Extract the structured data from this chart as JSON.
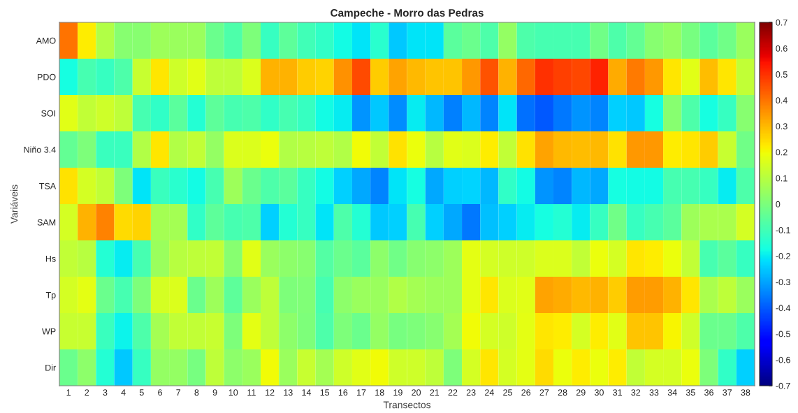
{
  "chart_data": {
    "type": "heatmap",
    "title": "Campeche - Morro das Pedras",
    "xlabel": "Transectos",
    "ylabel": "Variáveis",
    "categories": [
      "1",
      "2",
      "3",
      "4",
      "5",
      "6",
      "7",
      "8",
      "9",
      "10",
      "11",
      "12",
      "13",
      "14",
      "15",
      "16",
      "17",
      "18",
      "19",
      "20",
      "21",
      "22",
      "23",
      "24",
      "25",
      "26",
      "27",
      "28",
      "29",
      "30",
      "31",
      "32",
      "33",
      "34",
      "35",
      "36",
      "37",
      "38"
    ],
    "y_categories": [
      "AMO",
      "PDO",
      "SOI",
      "Niño 3.4",
      "TSA",
      "SAM",
      "Hs",
      "Tp",
      "WP",
      "Dir"
    ],
    "cells": [
      [
        0.4,
        0.22,
        0.09,
        0.02,
        0.02,
        0.06,
        0.05,
        0.05,
        -0.03,
        -0.08,
        0.0,
        -0.12,
        -0.05,
        -0.1,
        -0.13,
        -0.18,
        -0.21,
        -0.14,
        -0.25,
        -0.21,
        -0.21,
        -0.06,
        -0.03,
        -0.08,
        0.04,
        -0.08,
        -0.09,
        -0.09,
        -0.09,
        -0.02,
        -0.08,
        -0.04,
        0.02,
        0.04,
        -0.01,
        -0.06,
        -0.02,
        0.05
      ],
      [
        -0.17,
        -0.09,
        -0.12,
        -0.08,
        0.13,
        0.23,
        0.14,
        0.17,
        0.11,
        0.11,
        0.16,
        0.31,
        0.31,
        0.27,
        0.26,
        0.36,
        0.46,
        0.27,
        0.33,
        0.3,
        0.28,
        0.28,
        0.35,
        0.45,
        0.31,
        0.42,
        0.5,
        0.48,
        0.47,
        0.52,
        0.32,
        0.39,
        0.35,
        0.23,
        0.17,
        0.29,
        0.23,
        0.12
      ],
      [
        0.17,
        0.12,
        0.14,
        0.11,
        -0.09,
        -0.13,
        -0.06,
        -0.15,
        -0.05,
        -0.09,
        -0.08,
        -0.13,
        -0.09,
        -0.12,
        -0.18,
        -0.2,
        -0.32,
        -0.25,
        -0.33,
        -0.2,
        -0.27,
        -0.35,
        -0.27,
        -0.34,
        -0.21,
        -0.37,
        -0.4,
        -0.36,
        -0.32,
        -0.34,
        -0.24,
        -0.25,
        -0.17,
        0.02,
        -0.08,
        -0.17,
        -0.12,
        0.02
      ],
      [
        -0.04,
        0.0,
        -0.11,
        -0.11,
        0.09,
        0.23,
        0.09,
        0.12,
        0.04,
        0.16,
        0.16,
        0.19,
        0.09,
        0.1,
        0.11,
        0.09,
        0.2,
        0.12,
        0.24,
        0.19,
        0.1,
        0.17,
        0.16,
        0.22,
        0.12,
        0.24,
        0.33,
        0.3,
        0.29,
        0.3,
        0.24,
        0.35,
        0.35,
        0.22,
        0.23,
        0.27,
        0.13,
        -0.02
      ],
      [
        0.24,
        0.15,
        0.12,
        0.0,
        -0.21,
        -0.11,
        -0.14,
        -0.18,
        -0.09,
        0.06,
        -0.03,
        -0.08,
        -0.06,
        -0.12,
        -0.18,
        -0.24,
        -0.29,
        -0.34,
        -0.21,
        -0.17,
        -0.29,
        -0.24,
        -0.23,
        -0.27,
        -0.13,
        -0.18,
        -0.32,
        -0.34,
        -0.27,
        -0.29,
        -0.17,
        -0.18,
        -0.18,
        -0.09,
        -0.09,
        -0.12,
        -0.2,
        -0.08
      ],
      [
        0.15,
        0.31,
        0.38,
        0.25,
        0.26,
        0.07,
        0.07,
        -0.13,
        -0.05,
        -0.09,
        -0.08,
        -0.24,
        -0.15,
        -0.12,
        -0.21,
        -0.08,
        -0.15,
        -0.25,
        -0.24,
        -0.09,
        -0.24,
        -0.29,
        -0.36,
        -0.26,
        -0.24,
        -0.2,
        -0.17,
        -0.15,
        -0.2,
        -0.12,
        -0.02,
        -0.12,
        -0.09,
        -0.06,
        0.06,
        0.08,
        0.08,
        0.15
      ],
      [
        0.12,
        0.1,
        -0.15,
        -0.2,
        -0.09,
        0.05,
        0.1,
        0.11,
        0.12,
        0.02,
        0.17,
        0.05,
        0.03,
        0.02,
        -0.07,
        -0.03,
        -0.06,
        0.03,
        -0.02,
        0.02,
        0.03,
        0.06,
        0.18,
        0.15,
        0.14,
        0.14,
        0.16,
        0.16,
        0.12,
        0.19,
        0.15,
        0.23,
        0.22,
        0.19,
        0.12,
        -0.09,
        -0.06,
        -0.12
      ],
      [
        0.15,
        0.18,
        -0.03,
        -0.09,
        0.0,
        0.15,
        0.16,
        -0.03,
        0.06,
        -0.05,
        0.05,
        0.11,
        0.0,
        0.01,
        -0.09,
        0.03,
        0.05,
        0.05,
        0.09,
        0.07,
        0.06,
        0.06,
        0.18,
        0.23,
        0.16,
        0.17,
        0.33,
        0.32,
        0.3,
        0.31,
        0.27,
        0.34,
        0.34,
        0.31,
        0.23,
        0.08,
        0.11,
        0.05
      ],
      [
        0.13,
        0.13,
        -0.11,
        -0.19,
        -0.08,
        0.07,
        0.12,
        0.12,
        0.13,
        0.0,
        0.18,
        0.11,
        0.03,
        0.0,
        -0.08,
        0.0,
        -0.03,
        0.04,
        -0.01,
        0.0,
        0.02,
        0.07,
        0.2,
        0.15,
        0.14,
        0.18,
        0.23,
        0.22,
        0.15,
        0.22,
        0.17,
        0.28,
        0.28,
        0.21,
        0.14,
        -0.03,
        -0.03,
        -0.08
      ],
      [
        -0.03,
        0.03,
        -0.15,
        -0.25,
        -0.12,
        0.04,
        0.04,
        -0.01,
        0.11,
        0.03,
        0.05,
        0.2,
        0.05,
        0.13,
        0.07,
        0.14,
        0.17,
        0.2,
        0.14,
        0.14,
        0.11,
        0.0,
        0.15,
        0.23,
        0.15,
        0.18,
        0.25,
        0.19,
        0.22,
        0.19,
        0.22,
        0.12,
        0.15,
        0.15,
        0.19,
        0.0,
        -0.13,
        -0.24
      ]
    ],
    "clim": [
      -0.7,
      0.7
    ],
    "cticks": [
      -0.7,
      -0.6,
      -0.5,
      -0.4,
      -0.3,
      -0.2,
      -0.1,
      0,
      0.1,
      0.2,
      0.3,
      0.4,
      0.5,
      0.6,
      0.7
    ],
    "grid": false
  }
}
